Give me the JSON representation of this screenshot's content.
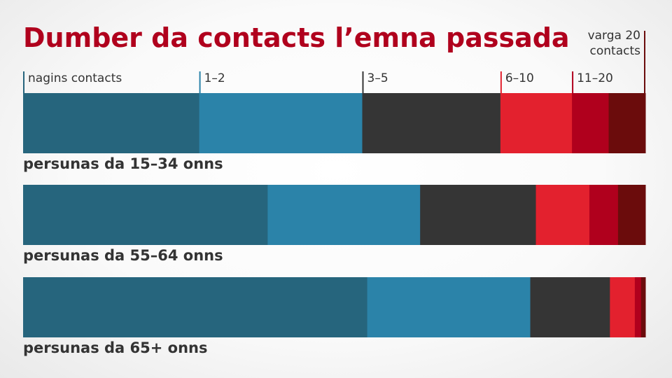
{
  "chart_data": {
    "type": "bar",
    "orientation": "horizontal",
    "stacked": true,
    "normalized": "percent",
    "title": "Dumber da contacts l’emna passada",
    "categories": [
      "persunas da 15–34 onns",
      "persunas da 55–64 onns",
      "persunas da 65+ onns"
    ],
    "series": [
      {
        "name": "nagins contacts",
        "color": "#26657d",
        "values": [
          28.3,
          39.3,
          55.3
        ]
      },
      {
        "name": "1–2",
        "color": "#2b83a9",
        "values": [
          26.2,
          24.5,
          26.2
        ]
      },
      {
        "name": "3–5",
        "color": "#353535",
        "values": [
          22.2,
          18.6,
          12.8
        ]
      },
      {
        "name": "6–10",
        "color": "#e3212e",
        "values": [
          11.5,
          8.6,
          4.0
        ]
      },
      {
        "name": "11–20",
        "color": "#b0001d",
        "values": [
          5.9,
          4.6,
          1.0
        ]
      },
      {
        "name": "varga 20 contacts",
        "color": "#6b0c0c",
        "values": [
          5.9,
          4.4,
          0.7
        ]
      }
    ],
    "xlim": [
      0,
      100
    ],
    "grid": false,
    "legend_placement": "top"
  },
  "colors": {
    "title": "#b0001d",
    "group_label": "#333333",
    "legend_text": "#333333"
  }
}
